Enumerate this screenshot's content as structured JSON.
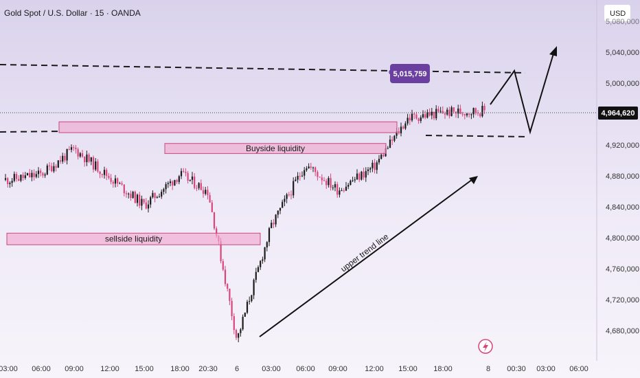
{
  "header": {
    "symbol_title": "Gold Spot / U.S. Dollar · 15 · OANDA",
    "currency_label": "USD"
  },
  "colors": {
    "bull": "#1a1a1a",
    "bear": "#d9457a",
    "zone_fill": "#f0a9cf",
    "zone_stroke": "#c8457e",
    "level_tag": "#6b3fa0",
    "price_tag": "#111111"
  },
  "chart_data": {
    "type": "candlestick",
    "instrument": "Gold Spot / U.S. Dollar",
    "timeframe": "15",
    "broker": "OANDA",
    "y_ticks": [
      "4,680,000",
      "4,720,000",
      "4,760,000",
      "4,800,000",
      "4,840,000",
      "4,880,000",
      "4,920,000",
      "5,000,000",
      "5,040,000"
    ],
    "x_ticks": [
      "03:00",
      "06:00",
      "09:00",
      "12:00",
      "15:00",
      "18:00",
      "20:30",
      "6",
      "03:00",
      "06:00",
      "09:00",
      "12:00",
      "15:00",
      "18:00",
      "8",
      "00:30",
      "03:00",
      "06:00"
    ],
    "current_price_label": "4,964,620",
    "target_level_label": "5,015,759",
    "zones": [
      {
        "label": "sellside  liquidity",
        "from": "03:00",
        "to": "6",
        "low": 4791,
        "high": 4806
      },
      {
        "label": "Buyside liquidity",
        "from": "18:00",
        "to": "12:00",
        "low": 4909,
        "high": 4922
      },
      {
        "label": "",
        "from": "06:00",
        "to": "15:00",
        "low": 4936,
        "high": 4950
      }
    ],
    "annotations": [
      "upper trend line"
    ],
    "close_path": [
      [
        "03:00",
        4875
      ],
      [
        "06:00",
        4882
      ],
      [
        "09:00",
        4915
      ],
      [
        "12:00",
        4878
      ],
      [
        "15:00",
        4842
      ],
      [
        "18:00",
        4882
      ],
      [
        "20:30",
        4860
      ],
      [
        "6",
        4668
      ],
      [
        "03:00",
        4815
      ],
      [
        "06:00",
        4895
      ],
      [
        "09:00",
        4862
      ],
      [
        "12:00",
        4892
      ],
      [
        "15:00",
        4955
      ],
      [
        "18:00",
        4962
      ],
      [
        "8",
        4964.6
      ]
    ]
  }
}
